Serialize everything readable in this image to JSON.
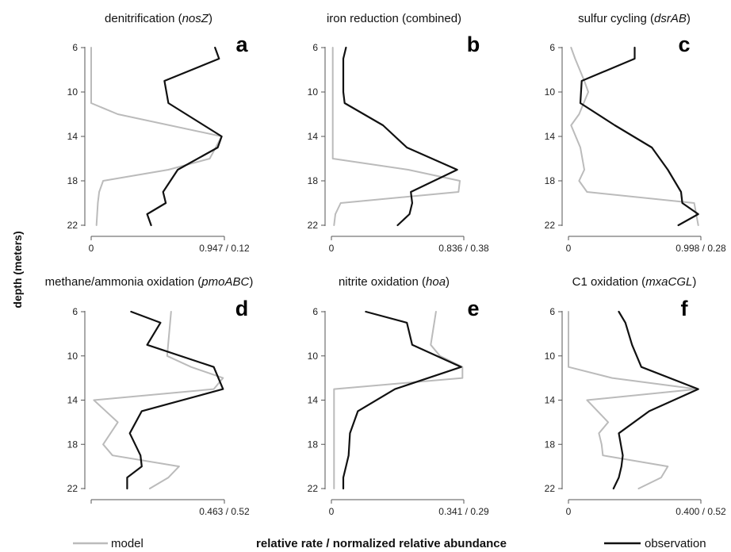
{
  "figure": {
    "ylabel": "depth (meters)",
    "xlabel": "relative rate / normalized relative abundance",
    "legend": {
      "model": "model",
      "observation": "observation"
    },
    "colors": {
      "model": "#bbbbbb",
      "observation": "#111111",
      "axis": "#555555"
    }
  },
  "chart_data": [
    {
      "type": "line",
      "letter": "a",
      "title_plain": "denitrification (",
      "title_italic": "nosZ",
      "title_tail": ")",
      "ylabel": "depth (meters)",
      "yticks": [
        6,
        10,
        14,
        18,
        22
      ],
      "ylim": [
        6,
        22
      ],
      "y_inverted": true,
      "xtick_left": "0",
      "xtick_right": "0.947 / 0.12",
      "series": [
        {
          "name": "model",
          "depth": [
            6,
            11,
            12,
            14,
            16,
            17,
            18,
            19,
            20,
            22
          ],
          "value": [
            0,
            0,
            0.2,
            0.98,
            0.89,
            0.58,
            0.09,
            0.06,
            0.05,
            0.04
          ]
        },
        {
          "name": "observation",
          "depth": [
            6,
            7,
            9,
            11,
            14,
            15,
            17,
            19,
            20,
            21,
            22
          ],
          "value": [
            0.93,
            0.96,
            0.55,
            0.58,
            0.98,
            0.95,
            0.65,
            0.54,
            0.56,
            0.42,
            0.45
          ]
        }
      ]
    },
    {
      "type": "line",
      "letter": "b",
      "title_plain": "iron reduction (combined)",
      "title_italic": "",
      "title_tail": "",
      "ylabel": "depth (meters)",
      "yticks": [
        6,
        10,
        14,
        18,
        22
      ],
      "ylim": [
        6,
        22
      ],
      "y_inverted": true,
      "xtick_left": "0",
      "xtick_right": "0.836 / 0.38",
      "series": [
        {
          "name": "model",
          "depth": [
            6,
            16,
            17,
            18,
            19,
            20,
            21,
            22
          ],
          "value": [
            0.01,
            0.01,
            0.58,
            0.97,
            0.96,
            0.07,
            0.03,
            0.02
          ]
        },
        {
          "name": "observation",
          "depth": [
            6,
            7,
            10,
            11,
            13,
            15,
            17,
            19,
            20,
            21,
            22
          ],
          "value": [
            0.11,
            0.09,
            0.09,
            0.1,
            0.39,
            0.57,
            0.95,
            0.6,
            0.61,
            0.59,
            0.5
          ]
        }
      ]
    },
    {
      "type": "line",
      "letter": "c",
      "title_plain": "sulfur cycling (",
      "title_italic": "dsrAB",
      "title_tail": ")",
      "ylabel": "depth (meters)",
      "yticks": [
        6,
        10,
        14,
        18,
        22
      ],
      "ylim": [
        6,
        22
      ],
      "y_inverted": true,
      "xtick_left": "0",
      "xtick_right": "0.998 / 0.28",
      "series": [
        {
          "name": "model",
          "depth": [
            6,
            7,
            9,
            10,
            12,
            13,
            15,
            17,
            18,
            19,
            20,
            22
          ],
          "value": [
            0.02,
            0.05,
            0.12,
            0.15,
            0.08,
            0.02,
            0.09,
            0.12,
            0.08,
            0.14,
            0.95,
            0.98
          ]
        },
        {
          "name": "observation",
          "depth": [
            6,
            7,
            9,
            11,
            13,
            15,
            17,
            19,
            20,
            21,
            22
          ],
          "value": [
            0.5,
            0.5,
            0.1,
            0.09,
            0.35,
            0.63,
            0.75,
            0.85,
            0.86,
            0.98,
            0.83
          ]
        }
      ]
    },
    {
      "type": "line",
      "letter": "d",
      "title_plain": "methane/ammonia oxidation (",
      "title_italic": "pmoABC",
      "title_tail": ")",
      "ylabel": "depth (meters)",
      "yticks": [
        6,
        10,
        14,
        18,
        22
      ],
      "ylim": [
        6,
        22
      ],
      "y_inverted": true,
      "xtick_left": "",
      "xtick_right": "0.463 / 0.52",
      "series": [
        {
          "name": "model",
          "depth": [
            6,
            10,
            11,
            12,
            13,
            14,
            16,
            18,
            19,
            20,
            21,
            22
          ],
          "value": [
            0.6,
            0.57,
            0.75,
            0.99,
            0.92,
            0.02,
            0.2,
            0.09,
            0.16,
            0.66,
            0.58,
            0.44
          ]
        },
        {
          "name": "observation",
          "depth": [
            6,
            7,
            9,
            11,
            13,
            15,
            17,
            19,
            20,
            21,
            22
          ],
          "value": [
            0.3,
            0.52,
            0.42,
            0.92,
            0.99,
            0.38,
            0.29,
            0.37,
            0.38,
            0.27,
            0.27
          ]
        }
      ]
    },
    {
      "type": "line",
      "letter": "e",
      "title_plain": "nitrite oxidation (",
      "title_italic": "hoa",
      "title_tail": ")",
      "ylabel": "depth (meters)",
      "yticks": [
        6,
        10,
        14,
        18,
        22
      ],
      "ylim": [
        6,
        22
      ],
      "y_inverted": true,
      "xtick_left": "0",
      "xtick_right": "0.341 / 0.29",
      "series": [
        {
          "name": "model",
          "depth": [
            6,
            9,
            10,
            11,
            12,
            13,
            22
          ],
          "value": [
            0.79,
            0.75,
            0.82,
            0.99,
            0.99,
            0.02,
            0.02
          ]
        },
        {
          "name": "observation",
          "depth": [
            6,
            7,
            9,
            11,
            13,
            15,
            17,
            19,
            20,
            21,
            22
          ],
          "value": [
            0.26,
            0.57,
            0.61,
            0.98,
            0.48,
            0.2,
            0.14,
            0.13,
            0.11,
            0.09,
            0.09
          ]
        }
      ]
    },
    {
      "type": "line",
      "letter": "f",
      "title_plain": "C1 oxidation (",
      "title_italic": "mxaCGL",
      "title_tail": ")",
      "ylabel": "depth (meters)",
      "yticks": [
        6,
        10,
        14,
        18,
        22
      ],
      "ylim": [
        6,
        22
      ],
      "y_inverted": true,
      "xtick_left": "0",
      "xtick_right": "0.400 / 0.52",
      "series": [
        {
          "name": "model",
          "depth": [
            6,
            11,
            12,
            13,
            14,
            16,
            17,
            18,
            19,
            20,
            21,
            22
          ],
          "value": [
            0,
            0,
            0.33,
            0.97,
            0.14,
            0.3,
            0.23,
            0.25,
            0.26,
            0.75,
            0.7,
            0.53
          ]
        },
        {
          "name": "observation",
          "depth": [
            6,
            7,
            9,
            11,
            13,
            15,
            17,
            19,
            20,
            21,
            22
          ],
          "value": [
            0.38,
            0.43,
            0.48,
            0.55,
            0.98,
            0.61,
            0.38,
            0.41,
            0.4,
            0.38,
            0.34
          ]
        }
      ]
    }
  ]
}
